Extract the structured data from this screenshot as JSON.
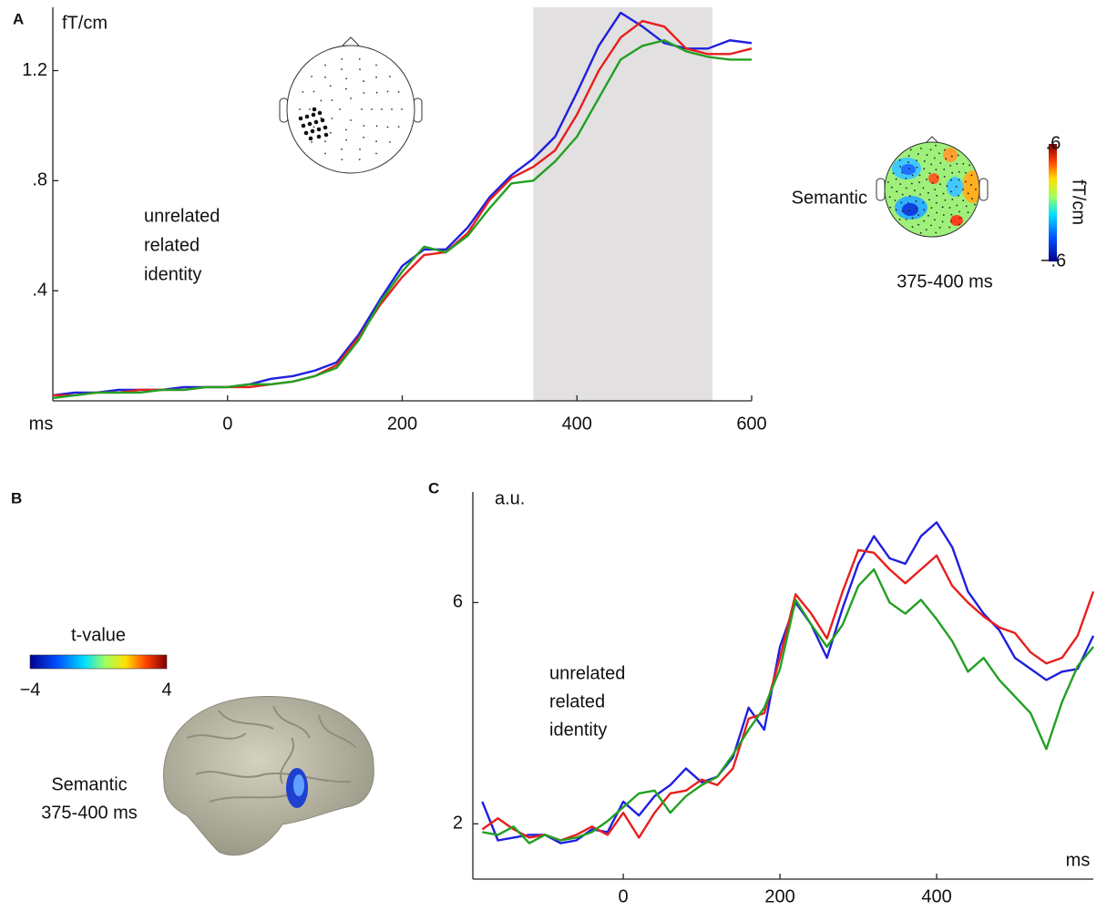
{
  "chart_data": [
    {
      "type": "line",
      "panel": "A",
      "ylabel": "fT/cm",
      "xlabel": "ms",
      "xlim": [
        -200,
        600
      ],
      "xticks": [
        0,
        200,
        400,
        600
      ],
      "ylim": [
        0,
        1.43
      ],
      "yticks": [
        {
          "value": 0.4,
          "label": ".4"
        },
        {
          "value": 0.8,
          "label": ".8"
        },
        {
          "value": 1.2,
          "label": "1.2"
        }
      ],
      "shaded_region": [
        350,
        555
      ],
      "x": [
        -200,
        -175,
        -150,
        -125,
        -100,
        -75,
        -50,
        -25,
        0,
        25,
        50,
        75,
        100,
        125,
        150,
        175,
        200,
        225,
        250,
        275,
        300,
        325,
        350,
        375,
        400,
        425,
        450,
        475,
        500,
        525,
        550,
        575,
        600
      ],
      "series": [
        {
          "name": "unrelated",
          "color": "#1f1fe0",
          "values": [
            0.02,
            0.03,
            0.03,
            0.04,
            0.04,
            0.04,
            0.05,
            0.05,
            0.05,
            0.06,
            0.08,
            0.09,
            0.11,
            0.14,
            0.24,
            0.37,
            0.49,
            0.55,
            0.55,
            0.63,
            0.74,
            0.82,
            0.88,
            0.96,
            1.12,
            1.29,
            1.41,
            1.36,
            1.3,
            1.28,
            1.28,
            1.31,
            1.3
          ]
        },
        {
          "name": "related",
          "color": "#e81e1e",
          "values": [
            0.02,
            0.02,
            0.03,
            0.03,
            0.04,
            0.04,
            0.04,
            0.05,
            0.05,
            0.05,
            0.06,
            0.07,
            0.09,
            0.13,
            0.23,
            0.35,
            0.45,
            0.53,
            0.54,
            0.61,
            0.73,
            0.81,
            0.85,
            0.91,
            1.04,
            1.2,
            1.32,
            1.38,
            1.36,
            1.28,
            1.26,
            1.26,
            1.28
          ]
        },
        {
          "name": "identity",
          "color": "#22a022",
          "values": [
            0.01,
            0.02,
            0.03,
            0.03,
            0.03,
            0.04,
            0.04,
            0.05,
            0.05,
            0.06,
            0.06,
            0.07,
            0.09,
            0.12,
            0.22,
            0.36,
            0.47,
            0.56,
            0.54,
            0.6,
            0.7,
            0.79,
            0.8,
            0.87,
            0.96,
            1.1,
            1.24,
            1.29,
            1.31,
            1.27,
            1.25,
            1.24,
            1.24
          ]
        }
      ],
      "inset": {
        "label": "Semantic",
        "time": "375-400 ms",
        "colorbar_label": "fT/cm",
        "colorbar_ticks": [
          {
            "value": 0.6,
            "label": ".6"
          },
          {
            "value": -0.6,
            "label": "−.6"
          }
        ]
      }
    },
    {
      "type": "line",
      "panel": "C",
      "ylabel": "a.u.",
      "xlabel": "ms",
      "xlim": [
        -192,
        600
      ],
      "xticks": [
        0,
        200,
        400
      ],
      "ylim": [
        1,
        8
      ],
      "yticks": [
        2,
        6
      ],
      "x": [
        -180,
        -160,
        -140,
        -120,
        -100,
        -80,
        -60,
        -40,
        -20,
        0,
        20,
        40,
        60,
        80,
        100,
        120,
        140,
        160,
        180,
        200,
        220,
        240,
        260,
        280,
        300,
        320,
        340,
        360,
        380,
        400,
        420,
        440,
        460,
        480,
        500,
        520,
        540,
        560,
        580,
        600
      ],
      "series": [
        {
          "name": "unrelated",
          "color": "#1f1fe0",
          "values": [
            2.4,
            1.7,
            1.75,
            1.8,
            1.8,
            1.65,
            1.7,
            1.9,
            1.85,
            2.4,
            2.15,
            2.5,
            2.7,
            3.0,
            2.75,
            2.85,
            3.2,
            4.1,
            3.7,
            5.2,
            6.0,
            5.6,
            5.0,
            5.9,
            6.7,
            7.2,
            6.8,
            6.7,
            7.2,
            7.45,
            7.0,
            6.2,
            5.8,
            5.5,
            5.0,
            4.8,
            4.6,
            4.75,
            4.8,
            5.4
          ]
        },
        {
          "name": "related",
          "color": "#e81e1e",
          "values": [
            1.9,
            2.1,
            1.9,
            1.75,
            1.8,
            1.7,
            1.8,
            1.95,
            1.8,
            2.2,
            1.75,
            2.2,
            2.55,
            2.6,
            2.8,
            2.7,
            3.0,
            3.9,
            4.0,
            5.0,
            6.15,
            5.8,
            5.35,
            6.2,
            6.95,
            6.9,
            6.6,
            6.35,
            6.6,
            6.85,
            6.3,
            6.0,
            5.75,
            5.55,
            5.45,
            5.1,
            4.9,
            5.0,
            5.4,
            6.2
          ]
        },
        {
          "name": "identity",
          "color": "#22a022",
          "values": [
            1.85,
            1.8,
            1.95,
            1.65,
            1.8,
            1.7,
            1.75,
            1.85,
            2.05,
            2.3,
            2.55,
            2.6,
            2.2,
            2.5,
            2.7,
            2.85,
            3.25,
            3.7,
            4.1,
            4.8,
            6.05,
            5.6,
            5.2,
            5.6,
            6.3,
            6.6,
            6.0,
            5.8,
            6.05,
            5.7,
            5.3,
            4.75,
            5.0,
            4.6,
            4.3,
            4.0,
            3.35,
            4.2,
            4.85,
            5.2
          ]
        }
      ]
    }
  ],
  "panel_b": {
    "panel": "B",
    "colorbar_label": "t-value",
    "colorbar_ticks": [
      {
        "value": -4,
        "label": "−4"
      },
      {
        "value": 4,
        "label": "4"
      }
    ],
    "caption": [
      "Semantic",
      "375-400 ms"
    ]
  }
}
